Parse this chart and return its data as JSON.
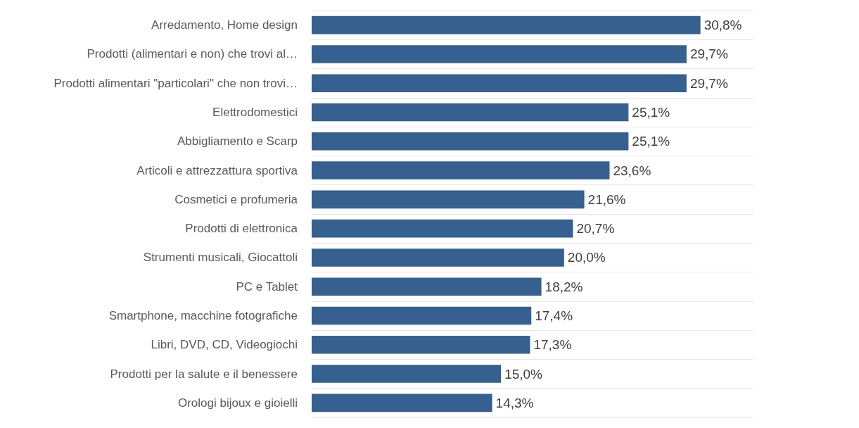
{
  "chart_data": {
    "type": "bar",
    "orientation": "horizontal",
    "categories": [
      "Arredamento, Home design",
      "Prodotti (alimentari e non) che trovi al…",
      "Prodotti alimentari \"particolari\" che non trovi…",
      "Elettrodomestici",
      "Abbigliamento e Scarp",
      "Articoli e attrezzattura sportiva",
      "Cosmetici e profumeria",
      "Prodotti di elettronica",
      "Strumenti musicali, Giocattoli",
      "PC e Tablet",
      "Smartphone, macchine fotografiche",
      "Libri, DVD, CD, Videogiochi",
      "Prodotti per la salute e il benessere",
      "Orologi bijoux e gioielli"
    ],
    "values": [
      30.8,
      29.7,
      29.7,
      25.1,
      25.1,
      23.6,
      21.6,
      20.7,
      20.0,
      18.2,
      17.4,
      17.3,
      15.0,
      14.3
    ],
    "value_labels": [
      "30,8%",
      "29,7%",
      "29,7%",
      "25,1%",
      "25,1%",
      "23,6%",
      "21,6%",
      "20,7%",
      "20,0%",
      "18,2%",
      "17,4%",
      "17,3%",
      "15,0%",
      "14,3%"
    ],
    "color": "#35608f",
    "grid": "y"
  }
}
